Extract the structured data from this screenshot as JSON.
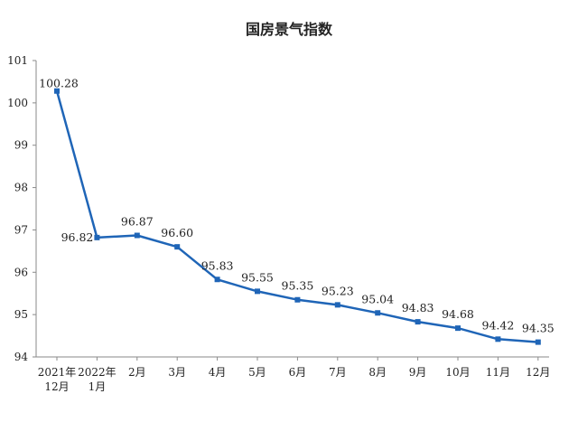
{
  "chart_data": {
    "type": "line",
    "title": "国房景气指数",
    "xlabel": "",
    "ylabel": "",
    "ylim": [
      94,
      101
    ],
    "yticks": [
      94,
      95,
      96,
      97,
      98,
      99,
      100,
      101
    ],
    "grid": false,
    "categories": [
      [
        "2021年",
        "12月"
      ],
      [
        "2022年",
        "1月"
      ],
      [
        "2月"
      ],
      [
        "3月"
      ],
      [
        "4月"
      ],
      [
        "5月"
      ],
      [
        "6月"
      ],
      [
        "7月"
      ],
      [
        "8月"
      ],
      [
        "9月"
      ],
      [
        "10月"
      ],
      [
        "11月"
      ],
      [
        "12月"
      ]
    ],
    "series": [
      {
        "values": [
          100.28,
          96.82,
          96.87,
          96.6,
          95.83,
          95.55,
          95.35,
          95.23,
          95.04,
          94.83,
          94.68,
          94.42,
          94.35
        ],
        "labels": [
          "100.28",
          "96.82",
          "96.87",
          "96.60",
          "95.83",
          "95.55",
          "95.35",
          "95.23",
          "95.04",
          "94.83",
          "94.68",
          "94.42",
          "94.35"
        ],
        "color": "#1f65b7"
      }
    ]
  }
}
